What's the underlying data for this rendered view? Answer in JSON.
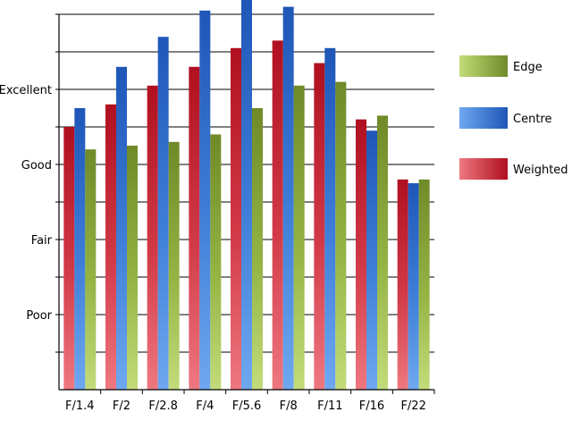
{
  "chart_data": {
    "type": "bar",
    "categories": [
      "F/1.4",
      "F/2",
      "F/2.8",
      "F/4",
      "F/5.6",
      "F/8",
      "F/11",
      "F/16",
      "F/22"
    ],
    "y_tick_labels": [
      "Poor",
      "Fair",
      "Good",
      "Excellent"
    ],
    "y_tick_values": [
      2,
      4,
      6,
      8
    ],
    "ylim": [
      0,
      10
    ],
    "grid": true,
    "legend_position": "right",
    "series": [
      {
        "name": "Weighted",
        "color": "#c0152a",
        "values": [
          7.0,
          7.6,
          8.1,
          8.6,
          9.1,
          9.3,
          8.7,
          7.2,
          5.6
        ]
      },
      {
        "name": "Centre",
        "color": "#2a63c6",
        "values": [
          7.5,
          8.6,
          9.4,
          10.1,
          10.4,
          10.2,
          9.1,
          6.9,
          5.5
        ]
      },
      {
        "name": "Edge",
        "color": "#7f9b32",
        "values": [
          6.4,
          6.5,
          6.6,
          6.8,
          7.5,
          8.1,
          8.2,
          7.3,
          5.6
        ]
      }
    ],
    "legend_order": [
      "Edge",
      "Centre",
      "Weighted"
    ]
  }
}
